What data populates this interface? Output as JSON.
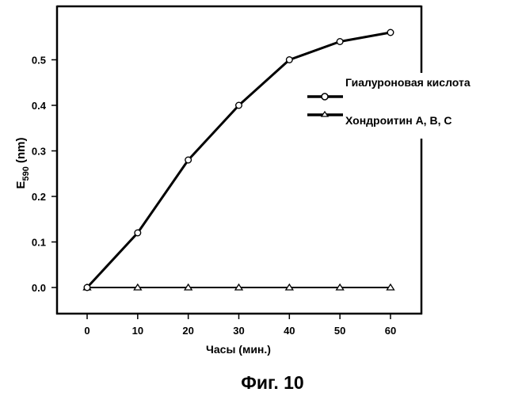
{
  "caption": "Фиг.  10",
  "chart_data": {
    "type": "line",
    "title": "",
    "xlabel": "Часы (мин.)",
    "ylabel_main": "E",
    "ylabel_sub": "590",
    "ylabel_unit": " (nm)",
    "ylabel": "E590 (nm)",
    "x": [
      0,
      10,
      20,
      30,
      40,
      50,
      60
    ],
    "xticks": [
      "0",
      "10",
      "20",
      "30",
      "40",
      "50",
      "60"
    ],
    "yticks": [
      "0.0",
      "0.1",
      "0.2",
      "0.3",
      "0.4",
      "0.5"
    ],
    "xlim": [
      -6,
      66
    ],
    "ylim": [
      -0.058,
      0.616
    ],
    "grid": false,
    "legend_position": "right, outside upper",
    "series": [
      {
        "name": "Гиалуроновая кислота",
        "marker": "circle-open",
        "values": [
          0.0,
          0.12,
          0.28,
          0.4,
          0.5,
          0.54,
          0.56
        ]
      },
      {
        "name": "Хондроитин A, B, C",
        "marker": "triangle-open",
        "values": [
          0.0,
          0.0,
          0.0,
          0.0,
          0.0,
          0.0,
          0.0
        ]
      }
    ]
  }
}
